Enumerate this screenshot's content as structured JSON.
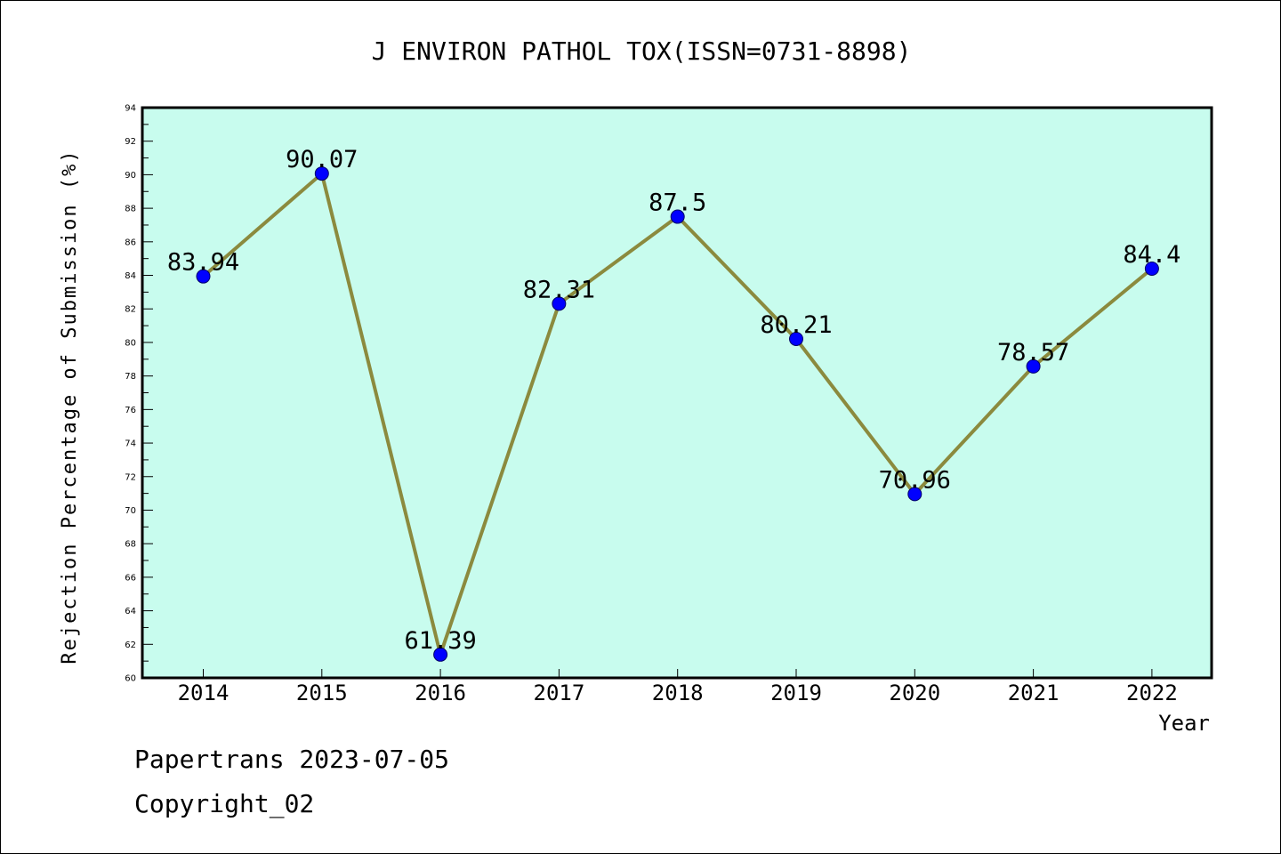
{
  "chart_data": {
    "type": "line",
    "title": "J ENVIRON PATHOL TOX(ISSN=0731-8898)",
    "xlabel": "Year",
    "ylabel": "Rejection Percentage of Submission (%)",
    "categories": [
      "2014",
      "2015",
      "2016",
      "2017",
      "2018",
      "2019",
      "2020",
      "2021",
      "2022"
    ],
    "series": [
      {
        "values": [
          83.94,
          90.07,
          61.39,
          82.31,
          87.5,
          80.21,
          70.96,
          78.57,
          84.4
        ],
        "labels": [
          "83.94",
          "90.07",
          "61.39",
          "82.31",
          "87.5",
          "80.21",
          "70.96",
          "78.57",
          "84.4"
        ]
      }
    ],
    "ylim": [
      60,
      94
    ],
    "yticks": [
      "60",
      "62",
      "64",
      "66",
      "68",
      "70",
      "72",
      "74",
      "76",
      "78",
      "80",
      "82",
      "84",
      "86",
      "88",
      "90",
      "92",
      "94"
    ],
    "grid": false,
    "legend": "none",
    "colors": {
      "plot_background": "#c8fcee",
      "line": "#8b8a3e",
      "marker": "#0000ff",
      "axis": "#000000"
    }
  },
  "footer": {
    "line1": "Papertrans 2023-07-05",
    "line2": "Copyright_02"
  }
}
